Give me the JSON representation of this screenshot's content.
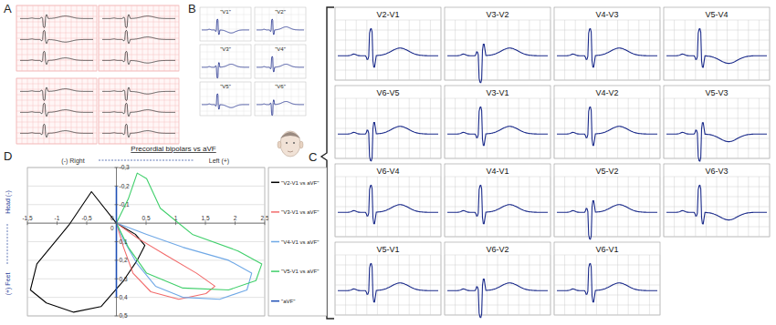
{
  "panel_labels": [
    "A",
    "B",
    "C",
    "D"
  ],
  "panel_b": {
    "leads": [
      "\"V1\"",
      "\"V2\"",
      "\"V3\"",
      "\"V4\"",
      "\"V5\"",
      "\"V6\""
    ]
  },
  "panel_c": {
    "leads": [
      "V2-V1",
      "V3-V2",
      "V4-V3",
      "V5-V4",
      "V6-V5",
      "V3-V1",
      "V4-V2",
      "V5-V3",
      "V6-V4",
      "V4-V1",
      "V5-V2",
      "V6-V3",
      "V5-V1",
      "V6-V2",
      "V6-V1"
    ]
  },
  "chart_data": {
    "type": "line",
    "title": "Precordial bipolars vs aVF",
    "xlabel_left": "(-) Right",
    "xlabel_right": "Left (+)",
    "ylabel_top": "Head (-)",
    "ylabel_bottom": "(+) Feet",
    "xlim": [
      -1.5,
      2.5
    ],
    "ylim": [
      -0.3,
      0.5
    ],
    "xticks": [
      {
        "value": -1.5,
        "label": "-1,5"
      },
      -1,
      {
        "value": -0.5,
        "label": "-0,5"
      },
      0,
      {
        "value": 0.5,
        "label": "0,5"
      },
      1,
      {
        "value": 1.5,
        "label": "1,5"
      },
      2,
      {
        "value": 2.5,
        "label": "2,5"
      }
    ],
    "yticks": [
      {
        "value": -0.3,
        "label": "-0,3"
      },
      {
        "value": -0.2,
        "label": "-0,2"
      },
      {
        "value": -0.1,
        "label": "-0,1"
      },
      0,
      {
        "value": 0.1,
        "label": "0,1"
      },
      {
        "value": 0.2,
        "label": "0,2"
      },
      {
        "value": 0.3,
        "label": "0,3"
      },
      {
        "value": 0.4,
        "label": "0,4"
      },
      {
        "value": 0.5,
        "label": "0,5"
      }
    ],
    "grid": true,
    "legend": "right",
    "series": [
      {
        "name": "\"V2-V1 vs aVF\"",
        "color": "#000000",
        "x": [
          0,
          -0.42,
          -0.8,
          -1.34,
          -1.45,
          -1.18,
          -0.72,
          -0.26,
          0.12,
          0.35,
          0.48,
          0.32,
          0
        ],
        "values": [
          0,
          -0.17,
          0.01,
          0.22,
          0.36,
          0.43,
          0.48,
          0.45,
          0.31,
          0.2,
          0.12,
          0.06,
          0
        ]
      },
      {
        "name": "\"V3-V1 vs aVF\"",
        "color": "#f26b6b",
        "x": [
          0,
          0.35,
          0.82,
          1.35,
          1.66,
          1.51,
          1.05,
          0.58,
          0.28,
          0.12,
          0
        ],
        "values": [
          0,
          0.08,
          0.17,
          0.27,
          0.34,
          0.38,
          0.41,
          0.37,
          0.27,
          0.13,
          0
        ]
      },
      {
        "name": "\"V4-V1 vs aVF\"",
        "color": "#6fa8e6",
        "x": [
          0,
          0.51,
          1.12,
          1.89,
          2.28,
          2.2,
          1.74,
          1.12,
          0.66,
          0.35,
          0.12,
          0
        ],
        "values": [
          0,
          0.06,
          0.13,
          0.2,
          0.27,
          0.36,
          0.41,
          0.4,
          0.34,
          0.22,
          0.09,
          0
        ]
      },
      {
        "name": "\"V5-V1 vs aVF\"",
        "color": "#3fcf6a",
        "x": [
          0,
          0.2,
          0.35,
          0.51,
          0.74,
          1.28,
          2.05,
          2.45,
          2.35,
          1.89,
          1.12,
          0.51,
          0.2,
          0
        ],
        "values": [
          0,
          -0.13,
          -0.27,
          -0.24,
          -0.08,
          0.06,
          0.15,
          0.22,
          0.31,
          0.36,
          0.35,
          0.27,
          0.13,
          0
        ]
      },
      {
        "name": "\"aVF\"",
        "color": "#1f4fb5",
        "x": [
          0,
          0
        ],
        "values": [
          -0.2,
          0.4
        ]
      }
    ]
  }
}
